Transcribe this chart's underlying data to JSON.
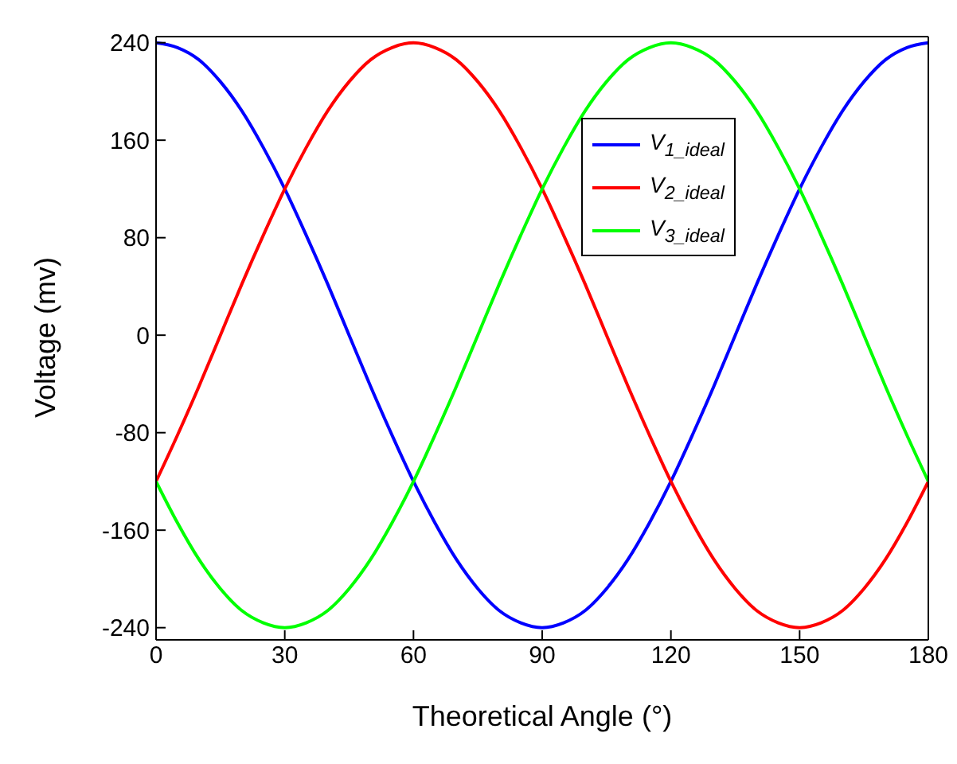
{
  "chart_data": {
    "type": "line",
    "xlabel": "Theoretical Angle (°)",
    "ylabel": "Voltage (mv)",
    "x": [
      0,
      5,
      10,
      15,
      20,
      25,
      30,
      35,
      40,
      45,
      50,
      55,
      60,
      65,
      70,
      75,
      80,
      85,
      90,
      95,
      100,
      105,
      110,
      115,
      120,
      125,
      130,
      135,
      140,
      145,
      150,
      155,
      160,
      165,
      170,
      175,
      180
    ],
    "series": [
      {
        "name": "V$_{1_ideal}$",
        "color": "#0000ff",
        "values": [
          240,
          236,
          226,
          208,
          184,
          154,
          120,
          82,
          42,
          0,
          -42,
          -82,
          -120,
          -154,
          -184,
          -208,
          -226,
          -236,
          -240,
          -236,
          -226,
          -208,
          -184,
          -154,
          -120,
          -82,
          -42,
          0,
          42,
          82,
          120,
          154,
          184,
          208,
          226,
          236,
          240
        ]
      },
      {
        "name": "V$_{2_ideal}$",
        "color": "#ff0000",
        "values": [
          -120,
          -82,
          -42,
          0,
          42,
          82,
          120,
          154,
          184,
          208,
          226,
          236,
          240,
          236,
          226,
          208,
          184,
          154,
          120,
          82,
          42,
          0,
          -42,
          -82,
          -120,
          -154,
          -184,
          -208,
          -226,
          -236,
          -240,
          -236,
          -226,
          -208,
          -184,
          -154,
          -120
        ]
      },
      {
        "name": "V$_{3_ideal}$",
        "color": "#00ff00",
        "values": [
          -120,
          -154,
          -184,
          -208,
          -226,
          -236,
          -240,
          -236,
          -226,
          -208,
          -184,
          -154,
          -120,
          -82,
          -42,
          0,
          42,
          82,
          120,
          154,
          184,
          208,
          226,
          236,
          240,
          236,
          226,
          208,
          184,
          154,
          120,
          82,
          42,
          0,
          -42,
          -82,
          -120
        ]
      }
    ],
    "xlim": [
      0,
      180
    ],
    "xticks": [
      0,
      30,
      60,
      90,
      120,
      150,
      180
    ],
    "ylim": [
      -250,
      245
    ],
    "yticks": [
      -240,
      -160,
      -80,
      0,
      80,
      160,
      240
    ],
    "grid": false,
    "legend": "top right",
    "marker": "none",
    "line_style": "solid"
  }
}
